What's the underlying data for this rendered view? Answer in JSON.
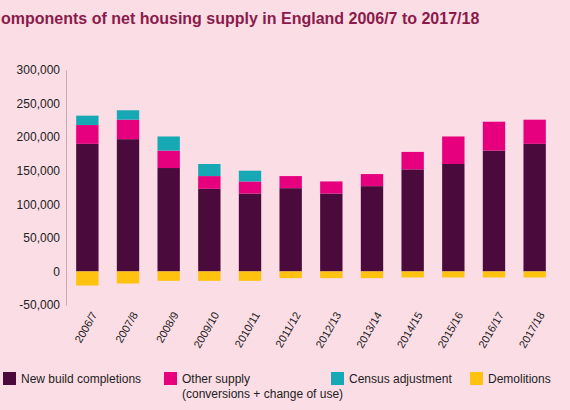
{
  "chart_data": {
    "type": "bar",
    "stacked": true,
    "title": "omponents of net housing supply in England 2006/7 to 2017/18",
    "categories": [
      "2006/7",
      "2007/8",
      "2008/9",
      "2009/10",
      "2010/11",
      "2011/12",
      "2012/13",
      "2013/14",
      "2014/15",
      "2015/16",
      "2016/17",
      "2017/18"
    ],
    "series": [
      {
        "name": "New build completions",
        "color": "#4b0a3c",
        "values": [
          190000,
          197000,
          154000,
          123000,
          116000,
          124000,
          116000,
          127000,
          152000,
          160000,
          180000,
          190000
        ]
      },
      {
        "name": "Other supply (conversions + change of use)",
        "color": "#e6007e",
        "values": [
          28000,
          29000,
          26000,
          19000,
          18000,
          18000,
          18000,
          18000,
          26000,
          41000,
          43000,
          36000
        ]
      },
      {
        "name": "Census adjustment",
        "color": "#17a8b5",
        "values": [
          14000,
          14000,
          21000,
          18000,
          16000,
          null,
          null,
          null,
          null,
          null,
          null,
          null
        ]
      },
      {
        "name": "Demolitions",
        "color": "#ffc20e",
        "values": [
          -21000,
          -18000,
          -14000,
          -14000,
          -14000,
          -10000,
          -10000,
          -10000,
          -9000,
          -9000,
          -9000,
          -9000
        ]
      }
    ],
    "ylim": [
      -50000,
      300000
    ],
    "yticks": [
      {
        "value": -50000,
        "label": "-50,000"
      },
      0,
      {
        "value": 50000,
        "label": "50,000"
      },
      {
        "value": 100000,
        "label": "100,000"
      },
      {
        "value": 150000,
        "label": "150,000"
      },
      {
        "value": 200000,
        "label": "200,000"
      },
      {
        "value": 250000,
        "label": "250,000"
      },
      {
        "value": 300000,
        "label": "300,000"
      }
    ],
    "grid": false
  }
}
